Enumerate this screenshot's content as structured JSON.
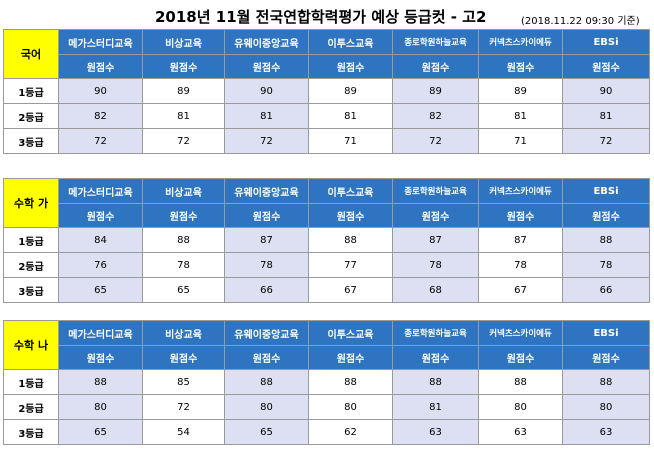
{
  "title": "2018년 11월 전국연합학력평가 예상 등급컷 - 고2",
  "timestamp": "(2018.11.22 09:30 기준)",
  "publishers": [
    "메가스터디교육",
    "비상교육",
    "유웨이중앙교육",
    "이투스교육",
    "종로학원하늘교육",
    "커넥츠스카이에듀",
    "EBSi"
  ],
  "score_label": "원점수",
  "colors": {
    "header_blue": "#2e74c0",
    "subject_yellow": "#ffff00",
    "shade_lavender": "#dde0f2"
  },
  "sections": [
    {
      "subject": "국어",
      "rows": [
        {
          "grade": "1등급",
          "values": [
            "90",
            "89",
            "90",
            "89",
            "89",
            "89",
            "90"
          ]
        },
        {
          "grade": "2등급",
          "values": [
            "82",
            "81",
            "81",
            "81",
            "82",
            "81",
            "81"
          ]
        },
        {
          "grade": "3등급",
          "values": [
            "72",
            "72",
            "72",
            "71",
            "72",
            "71",
            "72"
          ]
        }
      ]
    },
    {
      "subject": "수학 가",
      "rows": [
        {
          "grade": "1등급",
          "values": [
            "84",
            "88",
            "87",
            "88",
            "87",
            "87",
            "88"
          ]
        },
        {
          "grade": "2등급",
          "values": [
            "76",
            "78",
            "78",
            "77",
            "78",
            "78",
            "78"
          ]
        },
        {
          "grade": "3등급",
          "values": [
            "65",
            "65",
            "66",
            "67",
            "68",
            "67",
            "66"
          ]
        }
      ]
    },
    {
      "subject": "수학 나",
      "rows": [
        {
          "grade": "1등급",
          "values": [
            "88",
            "85",
            "88",
            "88",
            "88",
            "88",
            "88"
          ]
        },
        {
          "grade": "2등급",
          "values": [
            "80",
            "72",
            "80",
            "80",
            "81",
            "80",
            "80"
          ]
        },
        {
          "grade": "3등급",
          "values": [
            "65",
            "54",
            "65",
            "62",
            "63",
            "63",
            "63"
          ]
        }
      ]
    }
  ]
}
